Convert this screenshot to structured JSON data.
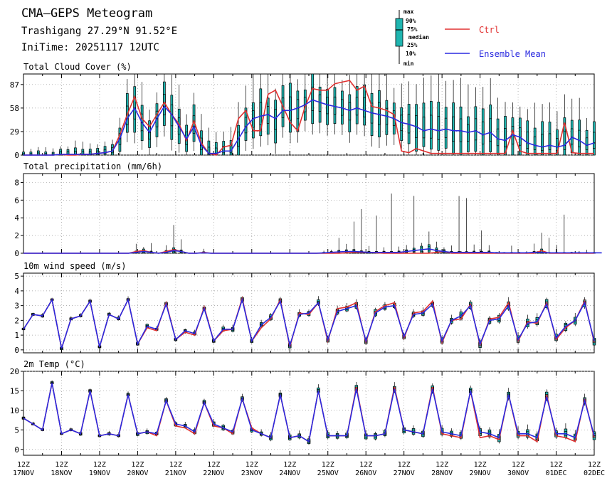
{
  "header": {
    "title": "CMA–GEPS Meteogram",
    "location": "Trashigang 27.29°N 91.52°E",
    "init_time": "IniTime: 20251117 12UTC"
  },
  "legend": {
    "box_labels": [
      "max",
      "90%",
      "75%",
      "median",
      "25%",
      "10%",
      "min"
    ],
    "ctrl_label": "Ctrl",
    "mean_label": "Ensemble Mean",
    "ctrl_color": "#e03030",
    "mean_color": "#2a2ae0",
    "box_color": "#1fb5b0"
  },
  "x_ticks": [
    {
      "top": "12Z",
      "bottom": "17NOV"
    },
    {
      "top": "12Z",
      "bottom": "18NOV"
    },
    {
      "top": "12Z",
      "bottom": "19NOV"
    },
    {
      "top": "12Z",
      "bottom": "20NOV"
    },
    {
      "top": "12Z",
      "bottom": "21NOV"
    },
    {
      "top": "12Z",
      "bottom": "22NOV"
    },
    {
      "top": "12Z",
      "bottom": "23NOV"
    },
    {
      "top": "12Z",
      "bottom": "24NOV"
    },
    {
      "top": "12Z",
      "bottom": "25NOV"
    },
    {
      "top": "12Z",
      "bottom": "26NOV"
    },
    {
      "top": "12Z",
      "bottom": "27NOV"
    },
    {
      "top": "12Z",
      "bottom": "28NOV"
    },
    {
      "top": "12Z",
      "bottom": "29NOV"
    },
    {
      "top": "12Z",
      "bottom": "30NOV"
    },
    {
      "top": "12Z",
      "bottom": "01DEC"
    },
    {
      "top": "12Z",
      "bottom": "02DEC"
    }
  ],
  "chart_data": [
    {
      "type": "box",
      "title": "Total Cloud Cover (%)",
      "ylim": [
        0,
        100
      ],
      "yticks": [
        0,
        29,
        58,
        87
      ],
      "x_step_hours": 6,
      "ctrl": [
        0,
        0,
        0,
        0,
        0,
        1,
        0,
        0,
        1,
        1,
        2,
        3,
        5,
        25,
        50,
        72,
        45,
        35,
        50,
        65,
        50,
        38,
        18,
        42,
        15,
        2,
        0,
        10,
        12,
        45,
        55,
        30,
        30,
        75,
        80,
        60,
        40,
        30,
        60,
        82,
        80,
        80,
        88,
        90,
        92,
        80,
        85,
        60,
        58,
        55,
        50,
        5,
        3,
        8,
        5,
        2,
        2,
        2,
        2,
        2,
        2,
        2,
        2,
        2,
        2,
        2,
        30,
        5,
        2,
        2,
        2,
        2,
        2,
        40,
        3,
        2,
        2,
        2
      ],
      "mean": [
        0,
        0,
        0,
        0,
        0,
        1,
        1,
        1,
        1,
        1,
        2,
        3,
        5,
        20,
        45,
        58,
        40,
        28,
        45,
        60,
        50,
        35,
        20,
        35,
        12,
        2,
        2,
        5,
        5,
        20,
        35,
        45,
        48,
        50,
        45,
        55,
        55,
        58,
        62,
        68,
        65,
        62,
        60,
        58,
        55,
        58,
        55,
        52,
        50,
        48,
        45,
        40,
        38,
        35,
        30,
        32,
        30,
        32,
        30,
        30,
        28,
        30,
        25,
        28,
        20,
        18,
        25,
        22,
        15,
        12,
        10,
        12,
        10,
        12,
        22,
        18,
        12,
        15
      ]
    },
    {
      "type": "box",
      "title": "Total precipitation (mm/6h)",
      "ylim": [
        0,
        9
      ],
      "yticks": [
        0,
        2,
        4,
        6,
        8
      ],
      "x_step_hours": 6,
      "ctrl": [
        0,
        0,
        0,
        0,
        0,
        0,
        0,
        0,
        0,
        0,
        0,
        0,
        0,
        0,
        0,
        0.2,
        0.3,
        0.1,
        0,
        0.2,
        0.4,
        0.2,
        0,
        0,
        0.1,
        0,
        0,
        0,
        0,
        0,
        0,
        0,
        0,
        0,
        0,
        0,
        0,
        0,
        0,
        0,
        0,
        0,
        0,
        0.05,
        0.1,
        0.1,
        0.1,
        0.05,
        0,
        0,
        0,
        0,
        0,
        0,
        0,
        0.1,
        0.2,
        0,
        0,
        0,
        0,
        0,
        0,
        0,
        0,
        0,
        0,
        0,
        0,
        0.3,
        0,
        0,
        0,
        0,
        0,
        0,
        0
      ],
      "mean": [
        0,
        0,
        0,
        0,
        0,
        0,
        0,
        0,
        0,
        0,
        0,
        0,
        0,
        0,
        0,
        0.1,
        0.2,
        0.1,
        0,
        0.1,
        0.3,
        0.2,
        0,
        0,
        0.05,
        0,
        0,
        0,
        0,
        0,
        0,
        0,
        0,
        0,
        0,
        0,
        0,
        0,
        0,
        0,
        0.05,
        0.1,
        0.15,
        0.2,
        0.2,
        0.15,
        0.1,
        0.1,
        0.1,
        0.1,
        0.1,
        0.2,
        0.3,
        0.4,
        0.5,
        0.3,
        0.2,
        0.1,
        0.1,
        0.1,
        0.1,
        0.1,
        0.1,
        0.05,
        0.05,
        0.05,
        0.05,
        0.05,
        0.1,
        0.1,
        0.05,
        0.05,
        0.05,
        0.05,
        0.05,
        0.05,
        0.05,
        0.05
      ]
    },
    {
      "type": "box",
      "title": "10m wind speed (m/s)",
      "ylim": [
        -0.2,
        5.2
      ],
      "yticks": [
        0,
        1,
        2,
        3,
        4,
        5
      ],
      "x_step_hours": 6,
      "ctrl": [
        1.4,
        2.4,
        2.3,
        3.4,
        0.1,
        2.1,
        2.3,
        3.3,
        0.2,
        2.4,
        2.1,
        3.4,
        0.4,
        1.5,
        1.3,
        3.2,
        0.7,
        1.2,
        1.0,
        2.9,
        0.6,
        1.3,
        1.4,
        3.5,
        0.6,
        1.5,
        2.1,
        3.4,
        0.2,
        2.5,
        2.4,
        3.2,
        0.6,
        2.8,
        2.9,
        3.2,
        0.5,
        2.6,
        3.0,
        3.2,
        0.8,
        2.5,
        2.6,
        3.3,
        0.5,
        2.0,
        2.1,
        3.1,
        0.3,
        2.1,
        2.2,
        3.2,
        0.6,
        1.9,
        1.8,
        3.2,
        0.7,
        1.5,
        2.0,
        3.3,
        0.5
      ],
      "mean": [
        1.4,
        2.4,
        2.3,
        3.4,
        0.1,
        2.1,
        2.3,
        3.3,
        0.2,
        2.4,
        2.1,
        3.4,
        0.4,
        1.6,
        1.4,
        3.1,
        0.7,
        1.3,
        1.1,
        2.8,
        0.6,
        1.4,
        1.4,
        3.4,
        0.6,
        1.7,
        2.2,
        3.3,
        0.3,
        2.4,
        2.5,
        3.2,
        0.7,
        2.6,
        2.8,
        3.0,
        0.6,
        2.5,
        2.9,
        3.0,
        0.9,
        2.4,
        2.5,
        3.1,
        0.6,
        2.0,
        2.3,
        3.0,
        0.4,
        2.0,
        2.1,
        3.0,
        0.7,
        1.8,
        1.9,
        3.1,
        0.8,
        1.6,
        2.0,
        3.2,
        0.6
      ]
    },
    {
      "type": "box",
      "title": "2m Temp (°C)",
      "ylim": [
        -1.5,
        20
      ],
      "yticks": [
        0,
        5,
        10,
        15,
        20
      ],
      "x_step_hours": 6,
      "ctrl": [
        8,
        6.5,
        5,
        17,
        4,
        5,
        4,
        15,
        3.5,
        4,
        3.5,
        14,
        4,
        4.5,
        3.5,
        12.5,
        6,
        5.5,
        4,
        12,
        6,
        5.5,
        4,
        13,
        5.5,
        4,
        3,
        14,
        3,
        3.5,
        2,
        15,
        3.5,
        3.5,
        3.5,
        16,
        3.5,
        3.5,
        4,
        16,
        5,
        4.5,
        4,
        16,
        4,
        3.5,
        3,
        15,
        3,
        3.5,
        2.5,
        14,
        3.5,
        3.5,
        2,
        14,
        3.5,
        3,
        2,
        13,
        3
      ],
      "mean": [
        8,
        6.5,
        5,
        17,
        4,
        5,
        4,
        15,
        3.5,
        4,
        3.5,
        14,
        4,
        4.5,
        4,
        12.5,
        6.5,
        6,
        4.5,
        12,
        6.5,
        5.5,
        4.5,
        13,
        5,
        4,
        3,
        14,
        3,
        3.5,
        2,
        15,
        3.5,
        3.5,
        3.5,
        15.5,
        3.5,
        3.5,
        4,
        15.5,
        5,
        4.5,
        4,
        15.5,
        4.5,
        4,
        3.5,
        15,
        4.5,
        4,
        3,
        14,
        4,
        4,
        3,
        13.5,
        4,
        4,
        3,
        12.5,
        3.5
      ]
    }
  ]
}
